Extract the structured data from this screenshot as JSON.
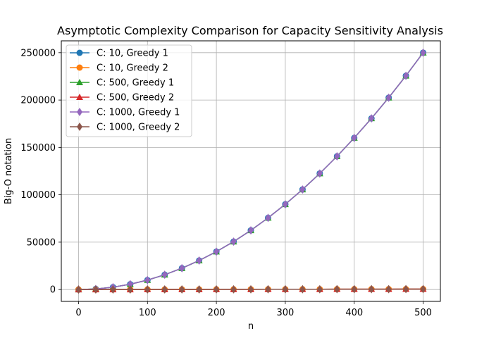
{
  "chart_data": {
    "type": "line",
    "title": "Asymptotic Complexity Comparison for Capacity Sensitivity Analysis",
    "xlabel": "n",
    "ylabel": "Big-O notation",
    "xlim": [
      -25,
      525
    ],
    "ylim": [
      -12500,
      262500
    ],
    "xticks": [
      0,
      100,
      200,
      300,
      400,
      500
    ],
    "yticks": [
      0,
      50000,
      100000,
      150000,
      200000,
      250000
    ],
    "grid": true,
    "legend_position": "top-left",
    "x": [
      0,
      25,
      50,
      75,
      100,
      125,
      150,
      175,
      200,
      225,
      250,
      275,
      300,
      325,
      350,
      375,
      400,
      425,
      450,
      475,
      500
    ],
    "series": [
      {
        "name": "C: 10, Greedy 1",
        "color": "#1f77b4",
        "marker": "circle",
        "values": [
          0,
          625,
          2500,
          5625,
          10000,
          15625,
          22500,
          30625,
          40000,
          50625,
          62500,
          75625,
          90000,
          105625,
          122500,
          140625,
          160000,
          180625,
          202500,
          225625,
          250000
        ]
      },
      {
        "name": "C: 10, Greedy 2",
        "color": "#ff7f0e",
        "marker": "circle",
        "values": [
          0,
          25,
          50,
          75,
          100,
          125,
          150,
          175,
          200,
          225,
          250,
          275,
          300,
          325,
          350,
          375,
          400,
          425,
          450,
          475,
          500
        ]
      },
      {
        "name": "C: 500, Greedy 1",
        "color": "#2ca02c",
        "marker": "triangle",
        "values": [
          0,
          625,
          2500,
          5625,
          10000,
          15625,
          22500,
          30625,
          40000,
          50625,
          62500,
          75625,
          90000,
          105625,
          122500,
          140625,
          160000,
          180625,
          202500,
          225625,
          250000
        ]
      },
      {
        "name": "C: 500, Greedy 2",
        "color": "#d62728",
        "marker": "triangle",
        "values": [
          0,
          25,
          50,
          75,
          100,
          125,
          150,
          175,
          200,
          225,
          250,
          275,
          300,
          325,
          350,
          375,
          400,
          425,
          450,
          475,
          500
        ]
      },
      {
        "name": "C: 1000, Greedy 1",
        "color": "#9467bd",
        "marker": "diamond",
        "values": [
          0,
          625,
          2500,
          5625,
          10000,
          15625,
          22500,
          30625,
          40000,
          50625,
          62500,
          75625,
          90000,
          105625,
          122500,
          140625,
          160000,
          180625,
          202500,
          225625,
          250000
        ]
      },
      {
        "name": "C: 1000, Greedy 2",
        "color": "#8c564b",
        "marker": "diamond",
        "values": [
          0,
          25,
          50,
          75,
          100,
          125,
          150,
          175,
          200,
          225,
          250,
          275,
          300,
          325,
          350,
          375,
          400,
          425,
          450,
          475,
          500
        ]
      }
    ]
  }
}
